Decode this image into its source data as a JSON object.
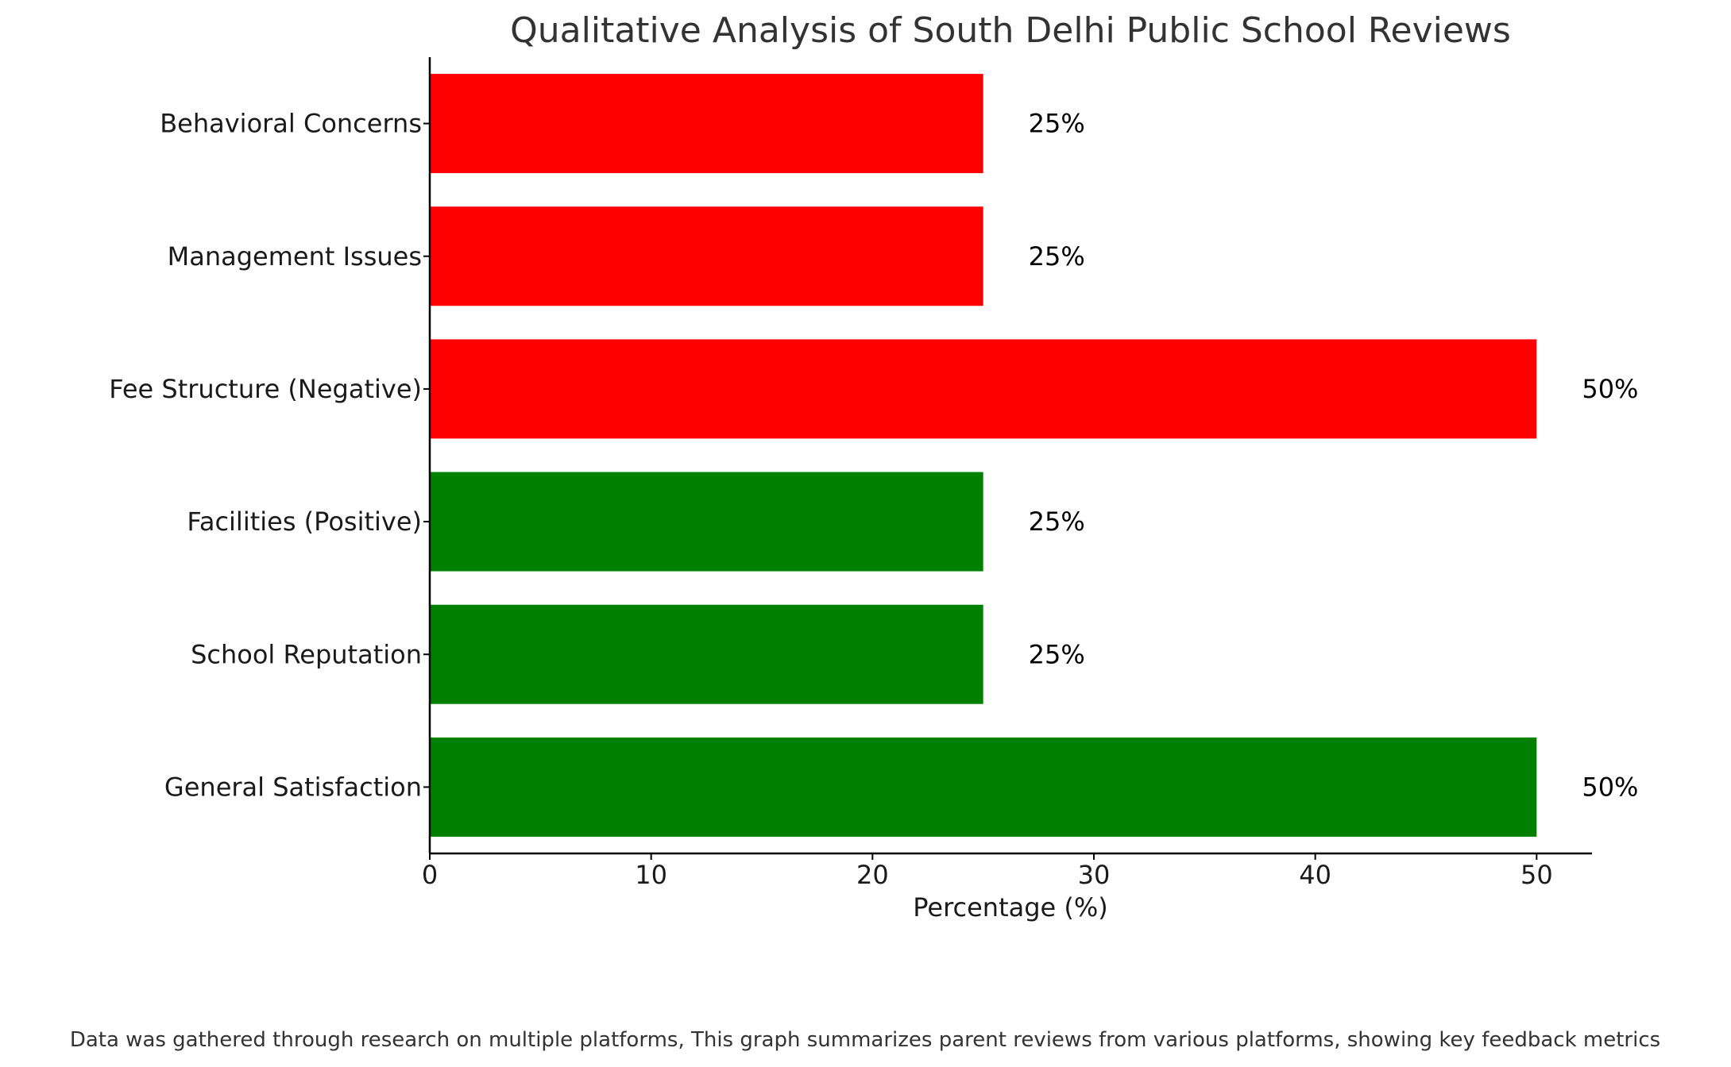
{
  "chart_data": {
    "type": "bar",
    "orientation": "horizontal",
    "title": "Qualitative Analysis of South Delhi Public School Reviews",
    "xlabel": "Percentage (%)",
    "ylabel": "",
    "xlim": [
      0,
      52.5
    ],
    "xticks": [
      0,
      10,
      20,
      30,
      40,
      50
    ],
    "xtick_labels": [
      "0",
      "10",
      "20",
      "30",
      "40",
      "50"
    ],
    "grid": false,
    "categories": [
      "General Satisfaction",
      "School Reputation",
      "Facilities (Positive)",
      "Fee Structure (Negative)",
      "Management Issues",
      "Behavioral Concerns"
    ],
    "values": [
      50,
      25,
      25,
      50,
      25,
      25
    ],
    "value_labels": [
      "50%",
      "25%",
      "25%",
      "50%",
      "25%",
      "25%"
    ],
    "colors": [
      "#008000",
      "#008000",
      "#008000",
      "#ff0000",
      "#ff0000",
      "#ff0000"
    ]
  },
  "footnote": "Data was gathered through research on multiple platforms, This graph summarizes parent reviews from various platforms, showing key feedback metrics"
}
